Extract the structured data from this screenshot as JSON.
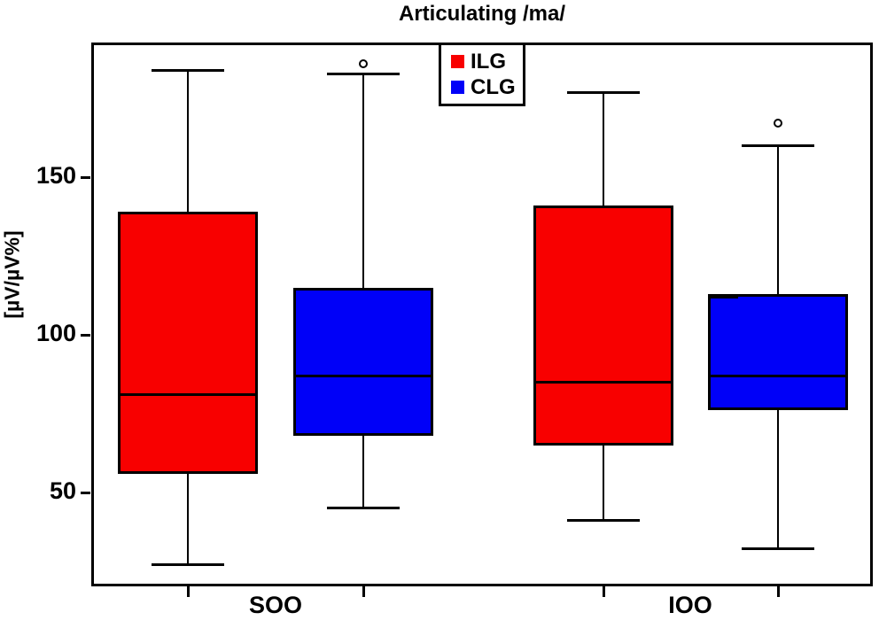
{
  "title": "Articulating /ma/",
  "y_axis": {
    "label": "[µV/µV%]",
    "ticks": [
      "150",
      "100",
      "50"
    ],
    "tick_values": [
      150,
      100,
      50
    ]
  },
  "x_axis": {
    "groups": [
      "SOO",
      "IOO"
    ]
  },
  "legend": {
    "entries": [
      {
        "label": "ILG",
        "color": "#F80000"
      },
      {
        "label": "CLG",
        "color": "#0000F8"
      }
    ]
  },
  "chart_data": {
    "type": "boxplot",
    "title": "Articulating /ma/",
    "ylabel": "[µV/µV%]",
    "categories": [
      "SOO",
      "IOO"
    ],
    "ylim": [
      20,
      193
    ],
    "yticks": [
      50,
      100,
      150
    ],
    "grid": false,
    "legend_position": "top-center-inside",
    "series": [
      {
        "name": "ILG",
        "color": "#F80000",
        "boxes": [
          {
            "category": "SOO",
            "whisker_low": 27,
            "q1": 56,
            "median": 81,
            "q3": 139,
            "whisker_high": 184,
            "outliers": []
          },
          {
            "category": "IOO",
            "whisker_low": 41,
            "q1": 65,
            "median": 85,
            "q3": 141,
            "whisker_high": 177,
            "outliers": []
          }
        ]
      },
      {
        "name": "CLG",
        "color": "#0000F8",
        "boxes": [
          {
            "category": "SOO",
            "whisker_low": 45,
            "q1": 68,
            "median": 87,
            "q3": 115,
            "whisker_high": 183,
            "outliers": [
              186
            ]
          },
          {
            "category": "IOO",
            "whisker_low": 32,
            "q1": 76,
            "median": 87,
            "q3": 113,
            "whisker_high": 160,
            "outliers": [
              167
            ],
            "inner_mark": 112
          }
        ]
      }
    ]
  }
}
